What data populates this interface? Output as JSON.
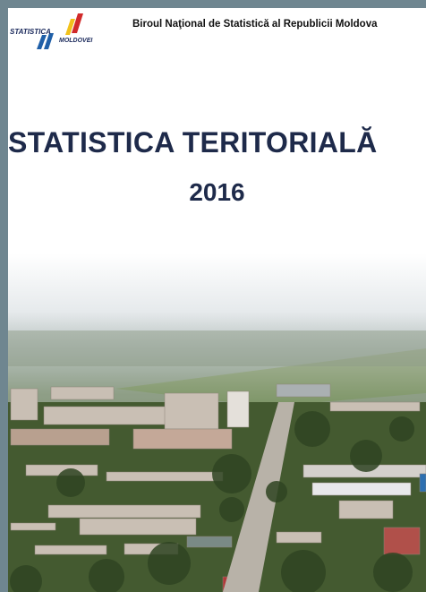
{
  "header": {
    "logo_top": "STATISTICA",
    "logo_bottom": "MOLDOVEI",
    "institution": "Biroul Naţional de Statistică al Republicii Moldova"
  },
  "cover": {
    "title": "STATISTICA TERITORIALĂ",
    "year": "2016"
  }
}
